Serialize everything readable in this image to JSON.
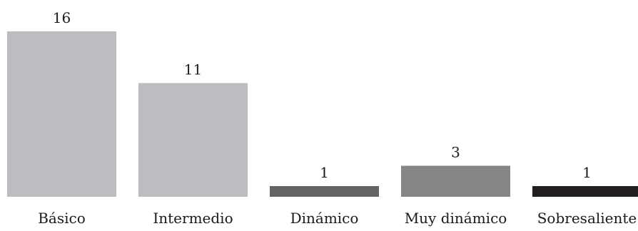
{
  "chart_data": {
    "type": "bar",
    "categories": [
      "Básico",
      "Intermedio",
      "Dinámico",
      "Muy dinámico",
      "Sobresaliente"
    ],
    "values": [
      16,
      11,
      1,
      3,
      1
    ],
    "colors": [
      "#bcbdc0",
      "#bcbdc0",
      "#646464",
      "#858688",
      "#231f20"
    ],
    "title": "",
    "xlabel": "",
    "ylabel": "",
    "ylim": [
      0,
      16
    ],
    "grid": false,
    "legend": "none"
  }
}
